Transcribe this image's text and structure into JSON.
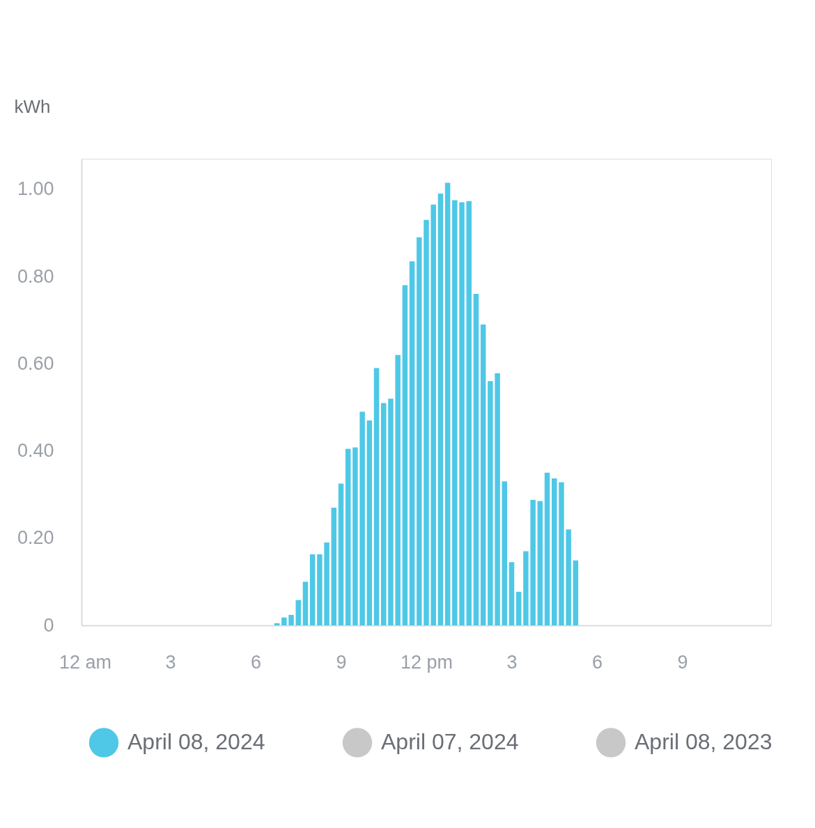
{
  "chart_data": {
    "type": "bar",
    "ylabel": "kWh",
    "x": [
      "2024-04-08T06:45",
      "2024-04-08T07:00",
      "2024-04-08T07:15",
      "2024-04-08T07:30",
      "2024-04-08T07:45",
      "2024-04-08T08:00",
      "2024-04-08T08:15",
      "2024-04-08T08:30",
      "2024-04-08T08:45",
      "2024-04-08T09:00",
      "2024-04-08T09:15",
      "2024-04-08T09:30",
      "2024-04-08T09:45",
      "2024-04-08T10:00",
      "2024-04-08T10:15",
      "2024-04-08T10:30",
      "2024-04-08T10:45",
      "2024-04-08T11:00",
      "2024-04-08T11:15",
      "2024-04-08T11:30",
      "2024-04-08T11:45",
      "2024-04-08T12:00",
      "2024-04-08T12:15",
      "2024-04-08T12:30",
      "2024-04-08T12:45",
      "2024-04-08T13:00",
      "2024-04-08T13:15",
      "2024-04-08T13:30",
      "2024-04-08T13:45",
      "2024-04-08T14:00",
      "2024-04-08T14:15",
      "2024-04-08T14:30",
      "2024-04-08T14:45",
      "2024-04-08T15:00",
      "2024-04-08T15:15",
      "2024-04-08T15:30",
      "2024-04-08T15:45",
      "2024-04-08T16:00",
      "2024-04-08T16:15",
      "2024-04-08T16:30",
      "2024-04-08T16:45",
      "2024-04-08T17:00",
      "2024-04-08T17:15"
    ],
    "series": [
      {
        "name": "April 08, 2024",
        "color": "#4ec8e6",
        "values": [
          0.005,
          0.018,
          0.024,
          0.058,
          0.1,
          0.163,
          0.163,
          0.19,
          0.27,
          0.325,
          0.405,
          0.408,
          0.49,
          0.47,
          0.59,
          0.51,
          0.52,
          0.62,
          0.78,
          0.835,
          0.89,
          0.93,
          0.965,
          0.99,
          1.015,
          0.975,
          0.97,
          0.973,
          0.76,
          0.69,
          0.56,
          0.578,
          0.33,
          0.145,
          0.077,
          0.17,
          0.288,
          0.285,
          0.35,
          0.337,
          0.328,
          0.22,
          0.149
        ]
      },
      {
        "name": "April 07, 2024",
        "color": "#c8c8c8",
        "values": [
          null,
          null,
          null,
          null,
          null,
          null,
          null,
          null,
          null,
          null,
          null,
          null,
          null,
          null,
          null,
          null,
          null,
          null,
          null,
          null,
          null,
          null,
          null,
          null,
          null,
          null,
          null,
          null,
          null,
          null,
          null,
          null,
          null,
          null,
          null,
          null,
          null,
          null,
          null,
          null,
          null,
          null,
          null
        ]
      },
      {
        "name": "April 08, 2023",
        "color": "#c8c8c8",
        "values": [
          null,
          null,
          null,
          null,
          null,
          null,
          null,
          null,
          null,
          null,
          null,
          null,
          null,
          null,
          null,
          null,
          null,
          null,
          null,
          null,
          null,
          null,
          null,
          null,
          null,
          null,
          null,
          null,
          null,
          null,
          null,
          null,
          null,
          null,
          null,
          null,
          null,
          null,
          null,
          null,
          null,
          null,
          null
        ]
      }
    ],
    "xlim": [
      "2024-04-08T00:00",
      "2024-04-09T00:00"
    ],
    "xticks": [
      {
        "value": "2024-04-08T00:00",
        "label": "12 am"
      },
      {
        "value": "2024-04-08T03:00",
        "label": "3"
      },
      {
        "value": "2024-04-08T06:00",
        "label": "6"
      },
      {
        "value": "2024-04-08T09:00",
        "label": "9"
      },
      {
        "value": "2024-04-08T12:00",
        "label": "12 pm"
      },
      {
        "value": "2024-04-08T15:00",
        "label": "3"
      },
      {
        "value": "2024-04-08T18:00",
        "label": "6"
      },
      {
        "value": "2024-04-08T21:00",
        "label": "9"
      }
    ],
    "ylim": [
      0,
      1.07
    ],
    "yticks": [
      0,
      {
        "value": 0.2,
        "label": "0.20"
      },
      {
        "value": 0.4,
        "label": "0.40"
      },
      {
        "value": 0.6,
        "label": "0.60"
      },
      {
        "value": 0.8,
        "label": "0.80"
      },
      {
        "value": 1.0,
        "label": "1.00"
      }
    ],
    "grid": false,
    "legend": "bottom"
  }
}
